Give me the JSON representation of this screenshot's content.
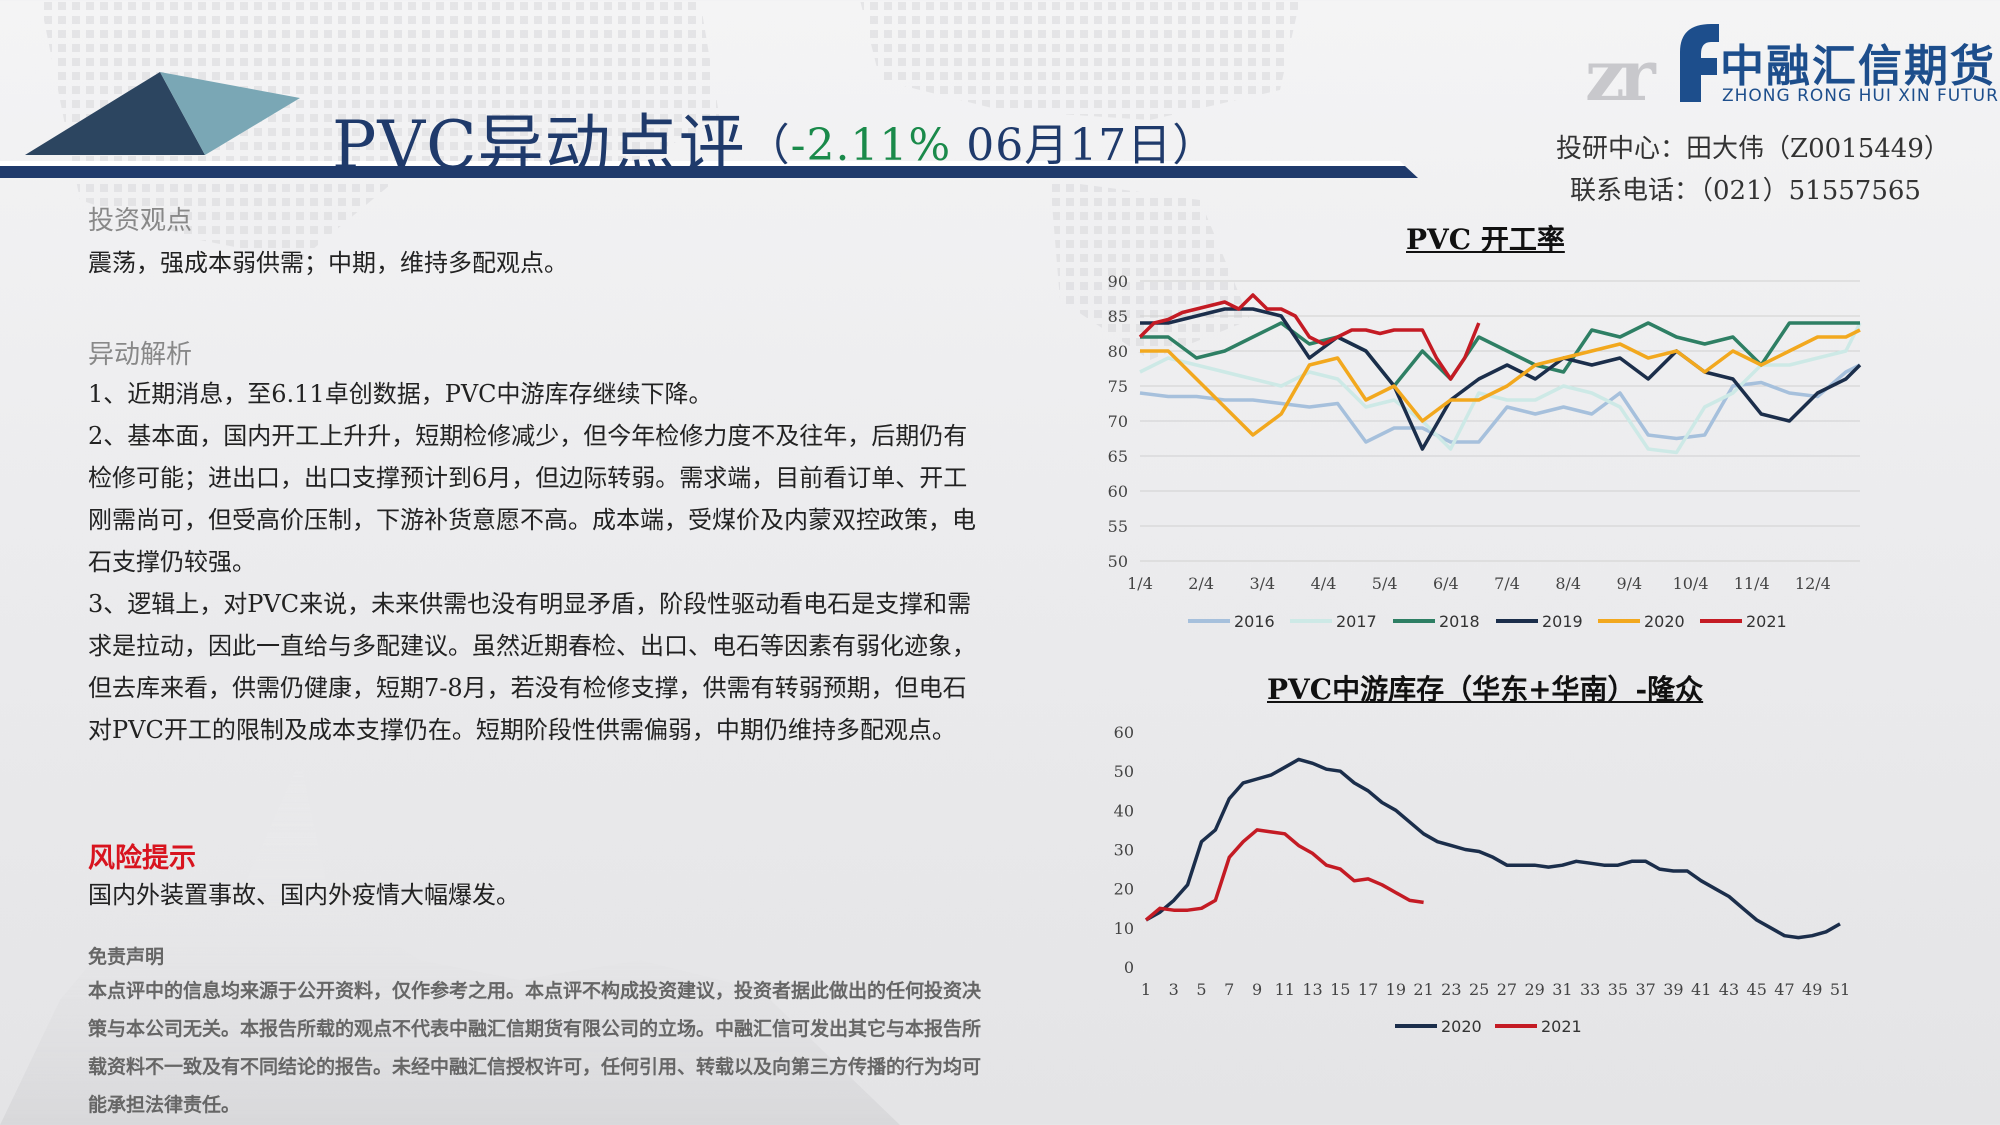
{
  "header": {
    "title_main": "PVC异动点评",
    "title_paren_open": "（",
    "title_change": "-2.11%",
    "title_date": " 06月17日",
    "title_paren_close": "）"
  },
  "logo": {
    "mark": "zrf",
    "name_cn": "中融汇信期货",
    "name_en": "ZHONG RONG HUI XIN FUTURES"
  },
  "contact": {
    "line1": "投研中心：田大伟（Z0015449）",
    "line2": "联系电话：（021）51557565"
  },
  "view": {
    "title": "投资观点",
    "text": "震荡，强成本弱供需；中期，维持多配观点。"
  },
  "analysis": {
    "title": "异动解析",
    "p1": "1、近期消息，至6.11卓创数据，PVC中游库存继续下降。",
    "p2": "2、基本面，国内开工上升升，短期检修减少，但今年检修力度不及往年，后期仍有检修可能；进出口，出口支撑预计到6月，但边际转弱。需求端，目前看订单、开工刚需尚可，但受高价压制，下游补货意愿不高。成本端，受煤价及内蒙双控政策，电石支撑仍较强。",
    "p3": "3、逻辑上，对PVC来说，未来供需也没有明显矛盾，阶段性驱动看电石是支撑和需求是拉动，因此一直给与多配建议。虽然近期春检、出口、电石等因素有弱化迹象，但去库来看，供需仍健康，短期7-8月，若没有检修支撑，供需有转弱预期，但电石对PVC开工的限制及成本支撑仍在。短期阶段性供需偏弱，中期仍维持多配观点。"
  },
  "risk": {
    "title": "风险提示",
    "text": "国内外装置事故、国内外疫情大幅爆发。"
  },
  "disclaimer": {
    "title": "免责声明",
    "text": "本点评中的信息均来源于公开资料，仅作参考之用。本点评不构成投资建议，投资者据此做出的任何投资决策与本公司无关。本报告所载的观点不代表中融汇信期货有限公司的立场。中融汇信可发出其它与本报告所载资料不一致及有不同结论的报告。未经中融汇信授权许可，任何引用、转载以及向第三方传播的行为均可能承担法律责任。"
  },
  "colors": {
    "title_blue": "#1f3a6b",
    "change_green": "#1a8a4a",
    "risk_red": "#d8141f",
    "header_bar": "#1f3a6b"
  },
  "chart_data": [
    {
      "type": "line",
      "title": "PVC 开工率",
      "xlabel": "",
      "ylabel": "",
      "x_tick_labels": [
        "1/4",
        "2/4",
        "3/4",
        "4/4",
        "5/4",
        "6/4",
        "7/4",
        "8/4",
        "9/4",
        "10/4",
        "11/4",
        "12/4"
      ],
      "ylim": [
        50,
        90
      ],
      "y_ticks": [
        50,
        55,
        60,
        65,
        70,
        75,
        80,
        85,
        90
      ],
      "grid": true,
      "legend": "bottom",
      "x_unit": "week (1-52)",
      "series": [
        {
          "name": "2016",
          "color": "#a6c0dc",
          "x": [
            1,
            3,
            5,
            7,
            9,
            11,
            13,
            15,
            17,
            19,
            21,
            23,
            25,
            27,
            29,
            31,
            33,
            35,
            37,
            39,
            41,
            43,
            45,
            47,
            49,
            51,
            52
          ],
          "values": [
            74,
            73.5,
            73.5,
            73,
            73,
            72.5,
            72,
            72.5,
            67,
            69,
            69,
            67,
            67,
            72,
            71,
            72,
            71,
            74,
            68,
            67.5,
            68,
            75,
            75.5,
            74,
            73.5,
            77,
            78
          ]
        },
        {
          "name": "2017",
          "color": "#cde9e6",
          "x": [
            1,
            3,
            5,
            7,
            9,
            11,
            13,
            15,
            17,
            19,
            21,
            23,
            25,
            27,
            29,
            31,
            33,
            35,
            37,
            39,
            41,
            43,
            45,
            47,
            49,
            51,
            52
          ],
          "values": [
            77,
            79,
            78,
            77,
            76,
            75,
            77,
            76,
            72,
            73,
            70,
            66,
            74,
            73,
            73,
            75,
            74,
            72,
            66,
            65.5,
            72,
            74,
            78,
            78,
            79,
            80,
            84
          ]
        },
        {
          "name": "2018",
          "color": "#2e7f64",
          "x": [
            1,
            3,
            5,
            7,
            9,
            11,
            13,
            15,
            17,
            19,
            21,
            23,
            25,
            27,
            29,
            31,
            33,
            35,
            37,
            39,
            41,
            43,
            45,
            47,
            49,
            51,
            52
          ],
          "values": [
            82,
            82,
            79,
            80,
            82,
            84,
            81,
            82,
            80,
            75,
            80,
            76,
            82,
            80,
            78,
            77,
            83,
            82,
            84,
            82,
            81,
            82,
            78,
            84,
            84,
            84,
            84
          ]
        },
        {
          "name": "2019",
          "color": "#1b2e4b",
          "x": [
            1,
            3,
            5,
            7,
            9,
            11,
            13,
            15,
            17,
            19,
            21,
            23,
            25,
            27,
            29,
            31,
            33,
            35,
            37,
            39,
            41,
            43,
            45,
            47,
            49,
            51,
            52
          ],
          "values": [
            84,
            84,
            85,
            86,
            86,
            85,
            79,
            82,
            80,
            75,
            66,
            73,
            76,
            78,
            76,
            79,
            78,
            79,
            76,
            80,
            77,
            76,
            71,
            70,
            74,
            76,
            78
          ]
        },
        {
          "name": "2020",
          "color": "#f2a81e",
          "x": [
            1,
            3,
            5,
            7,
            9,
            11,
            13,
            15,
            17,
            19,
            21,
            23,
            25,
            27,
            29,
            31,
            33,
            35,
            37,
            39,
            41,
            43,
            45,
            47,
            49,
            51,
            52
          ],
          "values": [
            80,
            80,
            76,
            72,
            68,
            71,
            78,
            79,
            73,
            75,
            70,
            73,
            73,
            75,
            78,
            79,
            80,
            81,
            79,
            80,
            77,
            80,
            78,
            80,
            82,
            82,
            83
          ]
        },
        {
          "name": "2021",
          "color": "#c41b24",
          "x": [
            1,
            2,
            3,
            4,
            5,
            6,
            7,
            8,
            9,
            10,
            11,
            12,
            13,
            14,
            15,
            16,
            17,
            18,
            19,
            20,
            21,
            22,
            23,
            24,
            25
          ],
          "values": [
            82,
            84,
            84.5,
            85.5,
            86,
            86.5,
            87,
            86,
            88,
            86,
            86,
            85,
            82,
            81,
            82,
            83,
            83,
            82.5,
            83,
            83,
            83,
            79,
            76,
            79,
            84
          ]
        }
      ]
    },
    {
      "type": "line",
      "title": "PVC中游库存（华东+华南）-隆众",
      "xlabel": "",
      "ylabel": "",
      "x_tick_labels": [
        "1",
        "3",
        "5",
        "7",
        "9",
        "11",
        "13",
        "15",
        "17",
        "19",
        "21",
        "23",
        "25",
        "27",
        "29",
        "31",
        "33",
        "35",
        "37",
        "39",
        "41",
        "43",
        "45",
        "47",
        "49",
        "51"
      ],
      "ylim": [
        0,
        60
      ],
      "y_ticks": [
        0,
        10,
        20,
        30,
        40,
        50,
        60
      ],
      "grid": false,
      "legend": "bottom",
      "series": [
        {
          "name": "2020",
          "color": "#1b2e4b",
          "x": [
            1,
            2,
            3,
            4,
            5,
            6,
            7,
            8,
            9,
            10,
            11,
            12,
            13,
            14,
            15,
            16,
            17,
            18,
            19,
            20,
            21,
            22,
            23,
            24,
            25,
            26,
            27,
            28,
            29,
            30,
            31,
            32,
            33,
            34,
            35,
            36,
            37,
            38,
            39,
            40,
            41,
            42,
            43,
            44,
            45,
            46,
            47,
            48,
            49,
            50,
            51
          ],
          "values": [
            12,
            14,
            17,
            21,
            32,
            35,
            43,
            47,
            48,
            49,
            51,
            53,
            52,
            50.5,
            50,
            47,
            45,
            42,
            40,
            37,
            34,
            32,
            31,
            30,
            29.5,
            28,
            26,
            26,
            26,
            25.5,
            26,
            27,
            26.5,
            26,
            26,
            27,
            27,
            25,
            24.5,
            24.5,
            22,
            20,
            18,
            15,
            12,
            10,
            8,
            7.5,
            8,
            9,
            11
          ]
        },
        {
          "name": "2021",
          "color": "#c41b24",
          "x": [
            1,
            2,
            3,
            4,
            5,
            6,
            7,
            8,
            9,
            10,
            11,
            12,
            13,
            14,
            15,
            16,
            17,
            18,
            19,
            20,
            21
          ],
          "values": [
            12,
            15,
            14.5,
            14.5,
            15,
            17,
            28,
            32,
            35,
            34.5,
            34,
            31,
            29,
            26,
            25,
            22,
            22.5,
            21,
            19,
            17,
            16.5
          ]
        }
      ]
    }
  ]
}
